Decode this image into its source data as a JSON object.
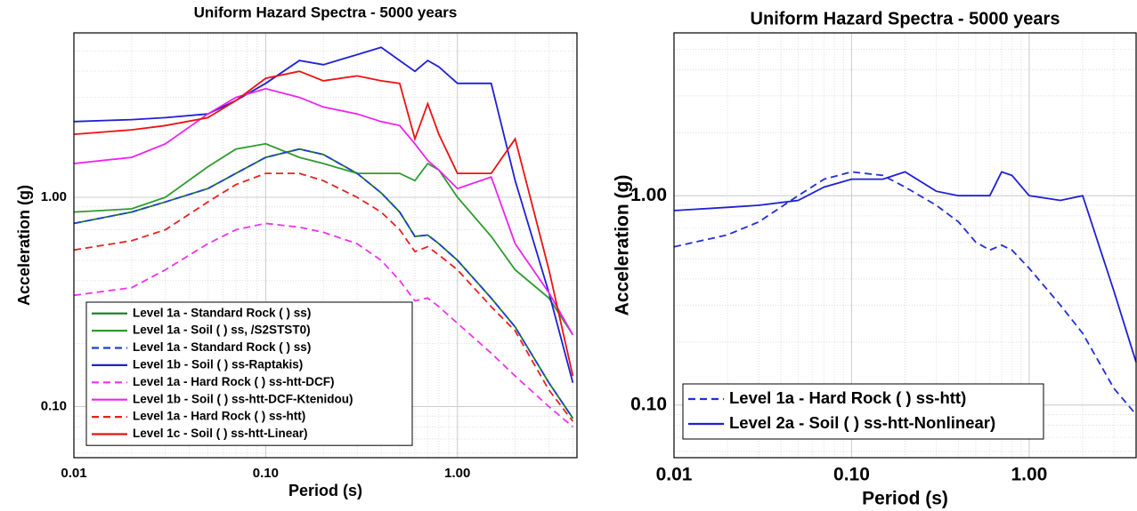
{
  "chart_data": [
    {
      "type": "line",
      "title": "Uniform Hazard Spectra - 5000 years",
      "xlabel": "Period (s)",
      "ylabel": "Acceleration (g)",
      "xscale": "log",
      "yscale": "log",
      "grid": true,
      "legend_loc": "lower left",
      "xlim": [
        0.01,
        4.2
      ],
      "ylim": [
        0.057,
        6.1
      ],
      "xticks": [
        0.01,
        {
          "value": 0.1,
          "label": "0.10"
        },
        {
          "value": 1,
          "label": "1.00"
        }
      ],
      "yticks": [
        {
          "value": 0.1,
          "label": "0.10"
        },
        {
          "value": 1,
          "label": "1.00"
        }
      ],
      "x": [
        0.01,
        0.02,
        0.03,
        0.05,
        0.07,
        0.1,
        0.15,
        0.2,
        0.3,
        0.4,
        0.5,
        0.6,
        0.7,
        0.8,
        1.0,
        1.5,
        2,
        3,
        4
      ],
      "series": [
        {
          "name": "Level 1a - Standard Rock ( ) ss)",
          "color": "#1a7a1a",
          "linestyle": "solid",
          "values": [
            0.75,
            0.85,
            0.95,
            1.1,
            1.3,
            1.55,
            1.7,
            1.6,
            1.3,
            1.05,
            0.85,
            0.65,
            0.66,
            0.6,
            0.5,
            0.33,
            0.24,
            0.13,
            0.088
          ]
        },
        {
          "name": "Level 1a - Soil ( ) ss, /S2STST0)",
          "color": "#2e9a2e",
          "linestyle": "solid",
          "values": [
            0.85,
            0.88,
            1.0,
            1.4,
            1.7,
            1.8,
            1.55,
            1.45,
            1.3,
            1.3,
            1.3,
            1.2,
            1.45,
            1.35,
            1.0,
            0.65,
            0.45,
            0.33,
            0.22
          ]
        },
        {
          "name": "Level 1a - Standard Rock ( ) ss)",
          "color": "#1f3fd6",
          "linestyle": "dashed",
          "values": [
            0.75,
            0.85,
            0.95,
            1.1,
            1.3,
            1.55,
            1.7,
            1.6,
            1.3,
            1.05,
            0.85,
            0.65,
            0.66,
            0.6,
            0.5,
            0.33,
            0.24,
            0.13,
            0.088
          ]
        },
        {
          "name": "Level 1b - Soil ( ) ss-Raptakis)",
          "color": "#1f1fd6",
          "linestyle": "solid",
          "values": [
            2.3,
            2.35,
            2.4,
            2.5,
            2.9,
            3.5,
            4.5,
            4.3,
            4.8,
            5.2,
            4.5,
            4.0,
            4.5,
            4.2,
            3.5,
            3.5,
            1.2,
            0.35,
            0.13
          ]
        },
        {
          "name": "Level 1a - Hard Rock ( ) ss-htt-DCF)",
          "color": "#ee33ee",
          "linestyle": "dashed",
          "values": [
            0.34,
            0.37,
            0.45,
            0.6,
            0.7,
            0.75,
            0.72,
            0.68,
            0.6,
            0.5,
            0.4,
            0.32,
            0.33,
            0.3,
            0.25,
            0.18,
            0.14,
            0.1,
            0.08
          ]
        },
        {
          "name": "Level 1b - Soil ( ) ss-htt-DCF-Ktenidou)",
          "color": "#ee22ee",
          "linestyle": "solid",
          "values": [
            1.45,
            1.55,
            1.8,
            2.5,
            3.0,
            3.3,
            3.0,
            2.7,
            2.5,
            2.3,
            2.2,
            1.8,
            1.5,
            1.35,
            1.1,
            1.25,
            0.6,
            0.35,
            0.22
          ]
        },
        {
          "name": "Level 1a - Hard Rock ( ) ss-htt)",
          "color": "#e82020",
          "linestyle": "dashed",
          "values": [
            0.56,
            0.62,
            0.7,
            0.95,
            1.15,
            1.3,
            1.3,
            1.2,
            1.0,
            0.85,
            0.7,
            0.55,
            0.58,
            0.53,
            0.45,
            0.3,
            0.23,
            0.12,
            0.085
          ]
        },
        {
          "name": "Level 1c - Soil ( ) ss-htt-Linear)",
          "color": "#ee1111",
          "linestyle": "solid",
          "values": [
            2.0,
            2.1,
            2.2,
            2.4,
            2.9,
            3.7,
            4.0,
            3.6,
            3.8,
            3.6,
            3.5,
            1.9,
            2.8,
            2.0,
            1.3,
            1.3,
            1.9,
            0.45,
            0.14
          ]
        }
      ]
    },
    {
      "type": "line",
      "title": "Uniform Hazard Spectra - 5000 years",
      "xlabel": "Period (s)",
      "ylabel": "Acceleration (g)",
      "xscale": "log",
      "yscale": "log",
      "grid": true,
      "legend_loc": "lower left",
      "xlim": [
        0.01,
        4.0
      ],
      "ylim": [
        0.056,
        6.0
      ],
      "xticks": [
        0.01,
        {
          "value": 0.1,
          "label": "0.10"
        },
        {
          "value": 1,
          "label": "1.00"
        }
      ],
      "yticks": [
        {
          "value": 0.1,
          "label": "0.10"
        },
        {
          "value": 1,
          "label": "1.00"
        }
      ],
      "x": [
        0.01,
        0.02,
        0.03,
        0.05,
        0.07,
        0.1,
        0.15,
        0.2,
        0.3,
        0.4,
        0.5,
        0.6,
        0.7,
        0.8,
        1.0,
        1.5,
        2,
        3,
        4
      ],
      "series": [
        {
          "name": "Level 1a - Hard Rock ( ) ss-htt)",
          "color": "#1f2fd6",
          "linestyle": "dashed",
          "values": [
            0.57,
            0.65,
            0.75,
            1.0,
            1.2,
            1.3,
            1.25,
            1.1,
            0.9,
            0.75,
            0.6,
            0.55,
            0.58,
            0.55,
            0.45,
            0.3,
            0.22,
            0.12,
            0.09
          ]
        },
        {
          "name": "Level 2a - Soil ( ) ss-htt-Nonlinear)",
          "color": "#1f1fd6",
          "linestyle": "solid",
          "values": [
            0.85,
            0.88,
            0.9,
            0.95,
            1.1,
            1.2,
            1.2,
            1.3,
            1.05,
            1.0,
            1.0,
            1.0,
            1.3,
            1.25,
            1.0,
            0.95,
            1.0,
            0.35,
            0.16
          ]
        }
      ]
    }
  ]
}
